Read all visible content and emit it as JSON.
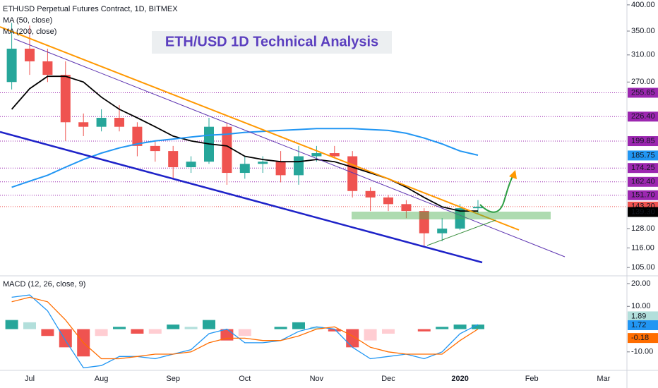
{
  "chart_data": [
    {
      "type": "candlestick",
      "title": "ETH/USD 1D Technical Analysis",
      "subtitle": "ETHUSD Perpetual Futures Contract, 1D, BITMEX",
      "categories": [
        null,
        "Jul",
        null,
        null,
        null,
        "Aug",
        null,
        null,
        null,
        "Sep",
        null,
        null,
        null,
        "Oct",
        null,
        null,
        null,
        "Nov",
        null,
        null,
        null,
        "Dec",
        null,
        null,
        null,
        "2020",
        null,
        null,
        null,
        "Feb",
        null,
        null,
        null,
        "Mar"
      ],
      "up_color": "#26a69a",
      "down_color": "#ef5350",
      "ohlc": [
        [
          270,
          365,
          260,
          320
        ],
        [
          320,
          360,
          280,
          300
        ],
        [
          300,
          320,
          270,
          280
        ],
        [
          280,
          300,
          200,
          220
        ],
        [
          220,
          230,
          205,
          215
        ],
        [
          215,
          235,
          210,
          225
        ],
        [
          225,
          240,
          210,
          215
        ],
        [
          215,
          220,
          185,
          195
        ],
        [
          195,
          200,
          180,
          190
        ],
        [
          190,
          195,
          165,
          175
        ],
        [
          175,
          185,
          170,
          180
        ],
        [
          180,
          225,
          178,
          215
        ],
        [
          215,
          220,
          160,
          170
        ],
        [
          170,
          185,
          165,
          178
        ],
        [
          178,
          185,
          170,
          180
        ],
        [
          180,
          190,
          162,
          168
        ],
        [
          168,
          195,
          160,
          185
        ],
        [
          185,
          195,
          180,
          188
        ],
        [
          188,
          195,
          183,
          185
        ],
        [
          185,
          190,
          150,
          155
        ],
        [
          155,
          158,
          140,
          150
        ],
        [
          150,
          152,
          140,
          145
        ],
        [
          145,
          148,
          135,
          140
        ],
        [
          140,
          142,
          117,
          125
        ],
        [
          125,
          135,
          120,
          128
        ],
        [
          128,
          145,
          127,
          142
        ],
        [
          142,
          148,
          138,
          143
        ],
        null,
        null,
        null,
        null,
        null,
        null,
        null
      ],
      "series": [
        {
          "name": "MA (50, close)",
          "color": "#000000",
          "values": [
            235,
            261,
            278,
            278,
            270,
            250,
            235,
            225,
            215,
            205,
            200,
            197,
            195,
            185,
            182,
            180,
            180,
            182,
            180,
            175,
            170,
            165,
            158,
            150,
            143,
            140,
            140,
            null,
            null,
            null,
            null,
            null,
            null,
            null
          ]
        },
        {
          "name": "MA (200, close)",
          "color": "#2196f3",
          "values": [
            158,
            163,
            168,
            175,
            182,
            188,
            193,
            197,
            200,
            202,
            204,
            206,
            207,
            209,
            210,
            211,
            212,
            213,
            213,
            213,
            212,
            211,
            208,
            203,
            197,
            190,
            186,
            null,
            null,
            null,
            null,
            null,
            null,
            null
          ]
        }
      ],
      "ylim": [
        101,
        410
      ],
      "log_scale": true,
      "yticks": [
        {
          "value": 400,
          "label": "400.00"
        },
        {
          "value": 350,
          "label": "350.00"
        },
        {
          "value": 310,
          "label": "310.00"
        },
        {
          "value": 270,
          "label": "270.00"
        },
        {
          "value": 128,
          "label": "128.00"
        },
        {
          "value": 116,
          "label": "116.00"
        },
        {
          "value": 105,
          "label": "105.00"
        }
      ],
      "levels": [
        {
          "value": 255.65,
          "label": "255.65",
          "color": "#9c27b0"
        },
        {
          "value": 226.4,
          "label": "226.40",
          "color": "#9c27b0"
        },
        {
          "value": 199.85,
          "label": "199.85",
          "color": "#9c27b0"
        },
        {
          "value": 174.25,
          "label": "174.25",
          "color": "#9c27b0"
        },
        {
          "value": 162.4,
          "label": "162.40",
          "color": "#9c27b0"
        },
        {
          "value": 151.7,
          "label": "151.70",
          "color": "#9c27b0"
        },
        {
          "value": 143.2,
          "label": "143.20",
          "color": "#ef5350"
        }
      ],
      "price_labels": [
        {
          "value": 185.75,
          "label": "185.75",
          "color": "#2196f3"
        },
        {
          "value": 139.3,
          "label": "139.30",
          "color": "#000000"
        }
      ]
    },
    {
      "type": "macd",
      "title": "MACD (12, 26, close, 9)",
      "histogram": [
        4,
        3,
        -3,
        -8,
        -12,
        -3,
        1,
        -2,
        -2,
        2,
        1,
        4,
        -5,
        -3,
        0,
        1,
        3,
        1,
        -1,
        -8,
        -5,
        -2,
        0,
        -1,
        1,
        2,
        2,
        null,
        null,
        null,
        null,
        null,
        null,
        null
      ],
      "macd": {
        "color": "#2196f3",
        "values": [
          14,
          15,
          8,
          -5,
          -17,
          -16,
          -12,
          -12,
          -13,
          -11,
          -9,
          -2,
          0,
          -6,
          -6,
          -5,
          -1,
          1,
          0,
          -8,
          -13,
          -12,
          -11,
          -13,
          -10,
          -2,
          2,
          null,
          null,
          null,
          null,
          null,
          null,
          null
        ]
      },
      "signal": {
        "color": "#ff6d00",
        "values": [
          12,
          14,
          12,
          4,
          -6,
          -13,
          -13,
          -12,
          -11,
          -11,
          -10,
          -6,
          -4,
          -4,
          -5,
          -5,
          -3,
          0,
          1,
          -3,
          -8,
          -10,
          -11,
          -11,
          -11,
          -5,
          0,
          null,
          null,
          null,
          null,
          null,
          null,
          null
        ]
      },
      "ylim": [
        -17.5,
        23.1
      ],
      "yticks": [
        {
          "value": 20,
          "label": "20.00"
        },
        {
          "value": 10,
          "label": "10.00"
        },
        {
          "value": -10,
          "label": "-10.00"
        }
      ],
      "price_labels": [
        {
          "value": 1.89,
          "label": "1.89",
          "color": "#b2dfdb"
        },
        {
          "value": 1.72,
          "label": "1.72",
          "color": "#2196f3"
        },
        {
          "value": -0.18,
          "label": "-0.18",
          "color": "#ff6d00"
        }
      ]
    }
  ]
}
